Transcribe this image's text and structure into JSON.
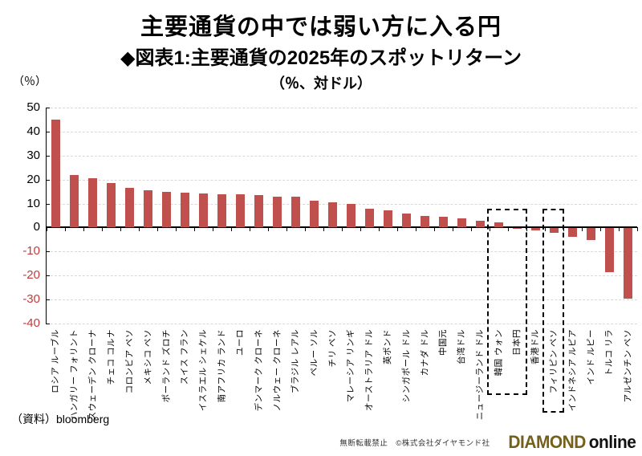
{
  "header": {
    "title": "主要通貨の中では弱い方に入る円",
    "subtitle": "◆図表1:主要通貨の2025年のスポットリターン",
    "subtitle2": "（％、対ドル）",
    "axis_unit": "（％）"
  },
  "chart_data": {
    "type": "bar",
    "title": "主要通貨の中では弱い方に入る円",
    "subtitle": "◆図表1:主要通貨の2025年のスポットリターン（％、対ドル）",
    "categories": [
      "ロシア ルーブル",
      "ハンガリー フォリント",
      "スウェーデン クローナ",
      "チェコ コルナ",
      "コロンビア ペソ",
      "メキシコ ペソ",
      "ポーランド ズロチ",
      "スイス フラン",
      "イスラエル シェケル",
      "南アフリカ ランド",
      "ユーロ",
      "デンマーク クローネ",
      "ノルウェー クローネ",
      "ブラジル レアル",
      "ペルー ソル",
      "チリ ペソ",
      "マレーシア リンギ",
      "オーストラリア ドル",
      "英ポンド",
      "シンガポール ドル",
      "カナダ ドル",
      "中国元",
      "台湾ドル",
      "ニュージーランド ドル",
      "韓国 ウォン",
      "日本円",
      "香港ドル",
      "フィリピン ペソ",
      "インドネシア ルピア",
      "インド ルピー",
      "トルコ リラ",
      "アルゼンチン ペソ"
    ],
    "values": [
      44.9,
      21.8,
      20.6,
      18.5,
      16.6,
      15.6,
      15.0,
      14.5,
      14.2,
      14.0,
      13.7,
      13.6,
      13.0,
      12.9,
      11.3,
      10.6,
      10.0,
      7.7,
      7.3,
      5.8,
      4.7,
      4.4,
      3.9,
      2.7,
      2.1,
      -0.2,
      -0.7,
      -1.7,
      -3.7,
      -4.9,
      -18.2,
      -29.4
    ],
    "ylabel": "（％）",
    "ylim": [
      -40,
      50
    ],
    "yticks": [
      50,
      40,
      30,
      20,
      10,
      0,
      -10,
      -20,
      -30,
      -40
    ],
    "grid": true,
    "legend": "none",
    "bar_color": "#C0504D",
    "positive_tick_label_color": "#000000",
    "negative_tick_label_color": "#C23B3B",
    "highlight_boxes": [
      {
        "labels": [
          "韓国 ウォン",
          "日本円"
        ],
        "start_index": 24,
        "end_index": 25
      },
      {
        "labels": [
          "フィリピン ペソ"
        ],
        "start_index": 27,
        "end_index": 27
      }
    ]
  },
  "footer": {
    "source": "（資料）bloomberg",
    "copyright": "無断転載禁止　©株式会社ダイヤモンド社",
    "logo_part1": "DIAMOND",
    "logo_part2": "online"
  }
}
